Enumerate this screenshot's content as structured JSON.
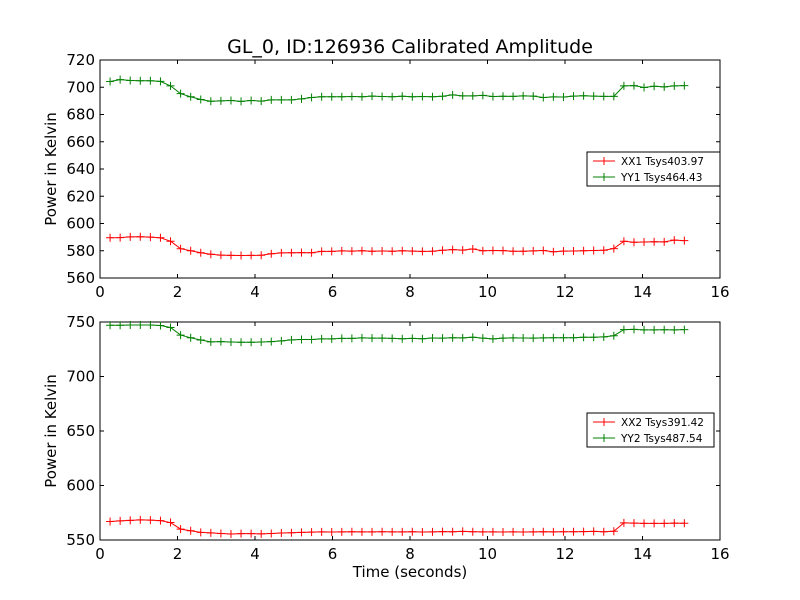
{
  "chart_data": {
    "type": "line",
    "title": "GL_0, ID:126936 Calibrated Amplitude",
    "colors": {
      "XX": "#ff0000",
      "YY": "#008000"
    },
    "x_common": [
      0.26,
      0.52,
      0.78,
      1.04,
      1.3,
      1.56,
      1.82,
      2.08,
      2.34,
      2.6,
      2.86,
      3.12,
      3.38,
      3.64,
      3.9,
      4.16,
      4.42,
      4.68,
      4.94,
      5.2,
      5.46,
      5.72,
      5.98,
      6.24,
      6.5,
      6.76,
      7.02,
      7.28,
      7.54,
      7.8,
      8.06,
      8.32,
      8.58,
      8.84,
      9.1,
      9.36,
      9.62,
      9.88,
      10.14,
      10.4,
      10.66,
      10.92,
      11.18,
      11.44,
      11.7,
      11.96,
      12.22,
      12.48,
      12.74,
      13.0,
      13.26,
      13.52,
      13.78,
      14.04,
      14.3,
      14.56,
      14.82,
      15.08
    ],
    "panels": [
      {
        "ylabel": "Power in Kelvin",
        "xlabel": "",
        "xlim": [
          0,
          16
        ],
        "ylim": [
          560,
          720
        ],
        "xticks": [
          0,
          2,
          4,
          6,
          8,
          10,
          12,
          14,
          16
        ],
        "yticks": [
          560,
          580,
          600,
          620,
          640,
          660,
          680,
          700,
          720
        ],
        "legend_position": "center-right",
        "series": [
          {
            "name": "XX1 Tsys403.97",
            "color_key": "XX",
            "values": [
              589.5,
              589.6,
              590.2,
              590.3,
              590.0,
              589.5,
              587.0,
              581.5,
              580.0,
              578.5,
              577.4,
              576.8,
              576.6,
              576.5,
              576.6,
              576.7,
              577.8,
              578.4,
              578.5,
              578.6,
              578.5,
              579.5,
              579.5,
              579.9,
              579.7,
              580.0,
              579.6,
              579.8,
              579.6,
              580.0,
              579.7,
              579.5,
              579.6,
              580.4,
              580.8,
              580.5,
              581.3,
              580.0,
              580.2,
              580.1,
              579.6,
              579.6,
              579.9,
              580.2,
              579.3,
              579.7,
              579.8,
              580.0,
              580.2,
              580.4,
              581.6,
              587.0,
              586.2,
              586.4,
              586.6,
              586.5,
              587.8,
              587.4
            ]
          },
          {
            "name": "YY1 Tsys464.43",
            "color_key": "YY",
            "values": [
              704.2,
              705.6,
              705.0,
              704.8,
              704.8,
              704.3,
              701.0,
              695.3,
              693.0,
              691.0,
              689.7,
              690.0,
              690.3,
              689.6,
              690.3,
              689.8,
              690.7,
              690.7,
              690.7,
              691.5,
              692.5,
              693.0,
              693.0,
              693.0,
              693.2,
              693.0,
              693.5,
              693.2,
              693.0,
              693.4,
              693.0,
              693.2,
              693.0,
              693.4,
              694.4,
              693.7,
              693.7,
              694.0,
              693.2,
              693.4,
              693.3,
              693.7,
              693.5,
              692.5,
              692.9,
              692.8,
              693.5,
              693.8,
              693.5,
              693.3,
              693.3,
              701.0,
              701.2,
              699.8,
              700.7,
              700.3,
              701.0,
              701.2
            ]
          }
        ]
      },
      {
        "ylabel": "Power in Kelvin",
        "xlabel": "Time (seconds)",
        "xlim": [
          0,
          16
        ],
        "ylim": [
          550,
          750
        ],
        "xticks": [
          0,
          2,
          4,
          6,
          8,
          10,
          12,
          14,
          16
        ],
        "yticks": [
          550,
          600,
          650,
          700,
          750
        ],
        "legend_position": "center-right",
        "series": [
          {
            "name": "XX2 Tsys391.42",
            "color_key": "XX",
            "values": [
              567.0,
              567.5,
              568.0,
              568.5,
              568.2,
              567.8,
              566.0,
              560.0,
              558.5,
              557.0,
              556.5,
              556.0,
              555.5,
              555.8,
              555.8,
              555.6,
              556.0,
              556.4,
              556.6,
              557.0,
              557.2,
              557.4,
              557.3,
              557.4,
              557.6,
              557.5,
              557.4,
              557.6,
              557.5,
              557.4,
              557.6,
              557.3,
              557.4,
              557.7,
              557.6,
              557.9,
              557.6,
              557.4,
              557.5,
              557.3,
              557.5,
              557.3,
              557.4,
              557.6,
              557.4,
              557.6,
              557.6,
              557.7,
              557.9,
              557.6,
              558.0,
              565.7,
              565.5,
              565.2,
              565.3,
              565.2,
              565.5,
              565.4
            ]
          },
          {
            "name": "YY2 Tsys487.54",
            "color_key": "YY",
            "values": [
              747.0,
              747.0,
              747.2,
              747.3,
              747.3,
              746.8,
              745.0,
              738.0,
              735.5,
              733.5,
              731.8,
              732.0,
              731.6,
              731.4,
              731.4,
              731.6,
              732.0,
              732.7,
              733.6,
              734.0,
              734.0,
              734.5,
              734.5,
              735.0,
              735.0,
              735.4,
              735.2,
              735.2,
              735.0,
              734.6,
              735.0,
              734.6,
              735.3,
              735.2,
              735.6,
              735.4,
              736.0,
              735.2,
              734.5,
              735.2,
              735.4,
              735.3,
              735.2,
              735.4,
              735.6,
              735.6,
              735.6,
              736.0,
              736.0,
              736.4,
              737.4,
              743.0,
              743.2,
              742.8,
              742.8,
              742.9,
              742.8,
              743.0
            ]
          }
        ]
      }
    ]
  }
}
